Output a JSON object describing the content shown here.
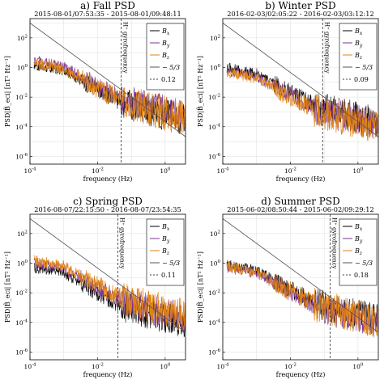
{
  "figure": {
    "xlabel": "frequency (Hz)",
    "ylabel": "PSD|B̃_eci| [nT² Hz⁻¹]"
  },
  "legend_labels": [
    "B_x",
    "B_y",
    "B_z",
    "− 5/3"
  ],
  "vline_label": "H⁺ gyrofrequency",
  "colors": {
    "Bx": "#000000",
    "By": "#7b3294",
    "Bz": "#e08214",
    "ref": "#555555"
  },
  "chart_data": [
    {
      "type": "line",
      "title": "a) Fall PSD",
      "subtitle": "2015-08-01/07:53:35 - 2015-08-01/09:48:11",
      "xlabel": "frequency (Hz)",
      "ylabel": "PSD|B̃_eci| [nT² Hz⁻¹]",
      "xscale": "log",
      "yscale": "log",
      "xlim": [
        0.0001,
        4
      ],
      "ylim": [
        3e-07,
        2000
      ],
      "xticks": [
        "10^{-4}",
        "10^{-2}",
        "10^{0}"
      ],
      "yticks": [
        "10^{2}",
        "10^{0}",
        "10^{-2}",
        "10^{-4}",
        "10^{-6}"
      ],
      "gyrofrequency_hz": 0.05,
      "slope_label": "0.12",
      "reference_slope": -1.6667,
      "series": [
        {
          "name": "B_x",
          "level": 1.5,
          "spread": 1.0
        },
        {
          "name": "B_y",
          "level": 3.0,
          "spread": 1.0
        },
        {
          "name": "B_z",
          "level": 2.0,
          "spread": 1.15
        }
      ]
    },
    {
      "type": "line",
      "title": "b) Winter PSD",
      "subtitle": "2016-02-03/02:05:22 - 2016-02-03/03:12:12",
      "xlabel": "frequency (Hz)",
      "ylabel": "PSD|B̃_eci| [nT² Hz⁻¹]",
      "xscale": "log",
      "yscale": "log",
      "xlim": [
        0.0001,
        4
      ],
      "ylim": [
        3e-07,
        2000
      ],
      "xticks": [
        "10^{-4}",
        "10^{-2}",
        "10^{0}"
      ],
      "yticks": [
        "10^{2}",
        "10^{0}",
        "10^{-2}",
        "10^{-4}",
        "10^{-6}"
      ],
      "gyrofrequency_hz": 0.09,
      "slope_label": "0.09",
      "reference_slope": -1.6667,
      "series": [
        {
          "name": "B_x",
          "level": 1.0,
          "spread": 1.0
        },
        {
          "name": "B_y",
          "level": 0.6,
          "spread": 1.0
        },
        {
          "name": "B_z",
          "level": 0.5,
          "spread": 1.1
        }
      ]
    },
    {
      "type": "line",
      "title": "c) Spring PSD",
      "subtitle": "2016-08-07/22:15:50 - 2016-08-07/23:54:35",
      "xlabel": "frequency (Hz)",
      "ylabel": "PSD|B̃_eci| [nT² Hz⁻¹]",
      "xscale": "log",
      "yscale": "log",
      "xlim": [
        0.0001,
        4
      ],
      "ylim": [
        3e-07,
        2000
      ],
      "xticks": [
        "10^{-4}",
        "10^{-2}",
        "10^{0}"
      ],
      "yticks": [
        "10^{2}",
        "10^{0}",
        "10^{-2}",
        "10^{-4}",
        "10^{-6}"
      ],
      "gyrofrequency_hz": 0.04,
      "slope_label": "0.11",
      "reference_slope": -1.6667,
      "series": [
        {
          "name": "B_x",
          "level": 0.5,
          "spread": 1.0
        },
        {
          "name": "B_y",
          "level": 1.0,
          "spread": 1.0
        },
        {
          "name": "B_z",
          "level": 1.5,
          "spread": 1.1
        }
      ]
    },
    {
      "type": "line",
      "title": "d) Summer PSD",
      "subtitle": "2015-06-02/08:50:44 - 2015-06-02/09:29:12",
      "xlabel": "frequency (Hz)",
      "ylabel": "PSD|B̃_eci| [nT² Hz⁻¹]",
      "xscale": "log",
      "yscale": "log",
      "xlim": [
        0.0001,
        4
      ],
      "ylim": [
        3e-07,
        2000
      ],
      "xticks": [
        "10^{-4}",
        "10^{-2}",
        "10^{0}"
      ],
      "yticks": [
        "10^{2}",
        "10^{0}",
        "10^{-2}",
        "10^{-4}",
        "10^{-6}"
      ],
      "gyrofrequency_hz": 0.15,
      "slope_label": "0.18",
      "reference_slope": -1.6667,
      "series": [
        {
          "name": "B_x",
          "level": 0.8,
          "spread": 1.0
        },
        {
          "name": "B_y",
          "level": 0.5,
          "spread": 1.0
        },
        {
          "name": "B_z",
          "level": 0.6,
          "spread": 1.1
        }
      ]
    }
  ]
}
